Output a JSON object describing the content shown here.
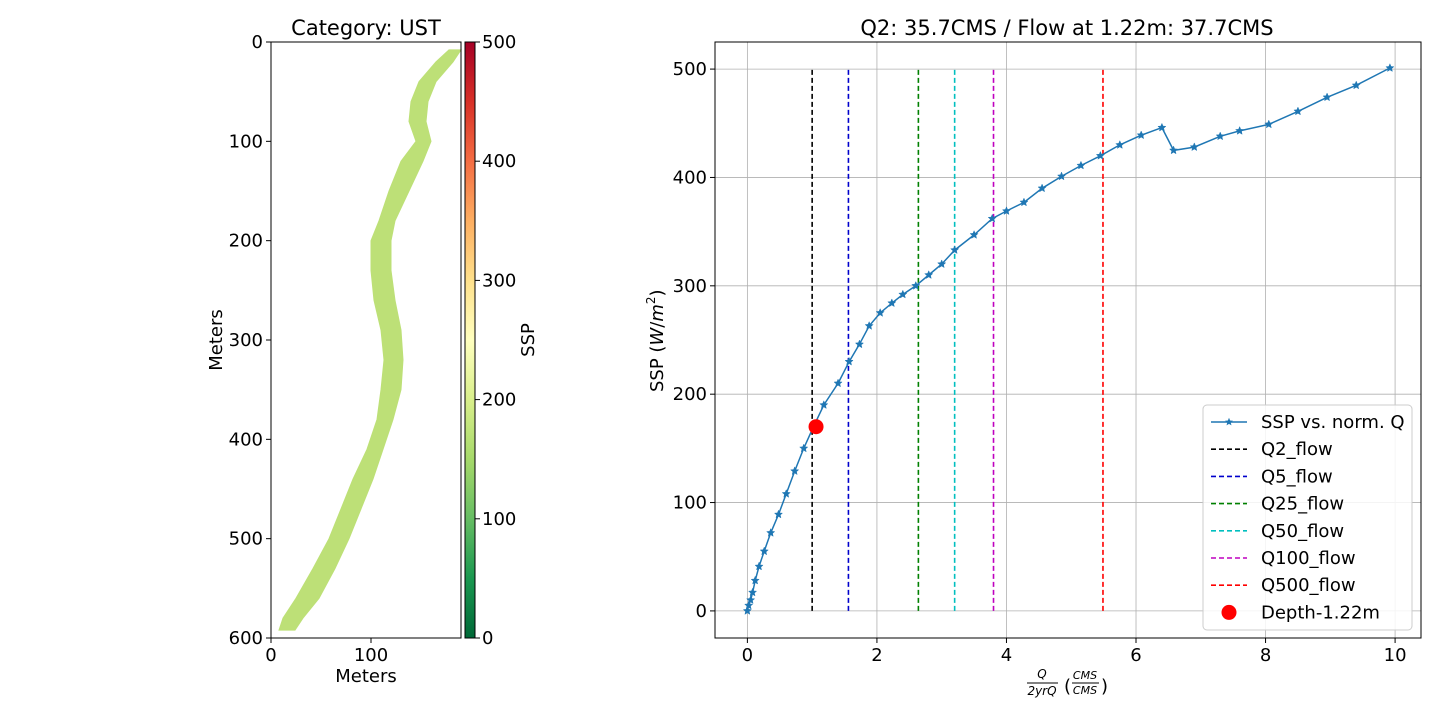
{
  "chart_data": [
    {
      "type": "heatmap",
      "title": "Category: UST",
      "xlabel": "Meters",
      "ylabel": "Meters",
      "xlim": [
        0,
        190
      ],
      "ylim": [
        600,
        0
      ],
      "x_ticks": [
        "0",
        "100"
      ],
      "x_tick_values": [
        0,
        100
      ],
      "y_ticks": [
        "0",
        "100",
        "200",
        "300",
        "400",
        "500",
        "600"
      ],
      "y_tick_values": [
        0,
        100,
        200,
        300,
        400,
        500,
        600
      ],
      "colorbar": {
        "label": "SSP",
        "range": [
          0,
          500
        ],
        "colormap": "RdYlGn_r",
        "ticks": [
          "0",
          "100",
          "200",
          "300",
          "400",
          "500"
        ],
        "tick_values": [
          0,
          100,
          200,
          300,
          400,
          500
        ]
      },
      "channel_value": 170,
      "channel_color": "#bde077",
      "channel_profile": {
        "y": [
          8,
          20,
          40,
          60,
          80,
          100,
          120,
          150,
          180,
          200,
          230,
          260,
          290,
          320,
          350,
          380,
          410,
          440,
          470,
          500,
          530,
          560,
          580,
          592
        ],
        "left": [
          178,
          165,
          148,
          140,
          138,
          145,
          130,
          118,
          108,
          100,
          100,
          103,
          110,
          113,
          110,
          106,
          96,
          82,
          70,
          58,
          42,
          25,
          12,
          8
        ],
        "right": [
          190,
          182,
          165,
          157,
          155,
          160,
          152,
          138,
          124,
          120,
          120,
          124,
          130,
          132,
          130,
          122,
          112,
          102,
          90,
          78,
          64,
          48,
          32,
          24
        ]
      }
    },
    {
      "type": "line",
      "title": "Q2: 35.7CMS / Flow at 1.22m: 37.7CMS",
      "xlabel": "Q / 2yrQ (CMS / CMS)",
      "ylabel": "SSP (W/m²)",
      "xlim": [
        -0.5,
        10.4
      ],
      "ylim": [
        -25,
        525
      ],
      "grid": true,
      "legend_position": "lower-right",
      "x_ticks": [
        "0",
        "2",
        "4",
        "6",
        "8",
        "10"
      ],
      "x_tick_values": [
        0,
        2,
        4,
        6,
        8,
        10
      ],
      "y_ticks": [
        "0",
        "100",
        "200",
        "300",
        "400",
        "500"
      ],
      "y_tick_values": [
        0,
        100,
        200,
        300,
        400,
        500
      ],
      "series": [
        {
          "name": "SSP vs. norm. Q",
          "color": "#1f77b4",
          "marker": "star",
          "x": [
            0,
            0.02,
            0.05,
            0.08,
            0.12,
            0.18,
            0.26,
            0.36,
            0.48,
            0.6,
            0.73,
            0.87,
            1.02,
            1.18,
            1.4,
            1.57,
            1.73,
            1.88,
            2.05,
            2.23,
            2.4,
            2.6,
            2.8,
            3.0,
            3.2,
            3.5,
            3.78,
            4.0,
            4.27,
            4.55,
            4.85,
            5.15,
            5.45,
            5.75,
            6.08,
            6.4,
            6.58,
            6.9,
            7.3,
            7.6,
            8.05,
            8.5,
            8.95,
            9.4,
            9.92
          ],
          "y": [
            0,
            5,
            10,
            17,
            28,
            41,
            55,
            72,
            89,
            108,
            129,
            150,
            170,
            190,
            210,
            230,
            246,
            263,
            275,
            284,
            292,
            300,
            310,
            320,
            333,
            347,
            362,
            369,
            377,
            390,
            401,
            411,
            420,
            430,
            439,
            446,
            425,
            428,
            438,
            443,
            449,
            461,
            474,
            485,
            501
          ]
        }
      ],
      "vlines": [
        {
          "name": "Q2_flow",
          "x": 1.0,
          "color": "#000000",
          "ymax": 500
        },
        {
          "name": "Q5_flow",
          "x": 1.56,
          "color": "#0000cc",
          "ymax": 500
        },
        {
          "name": "Q25_flow",
          "x": 2.64,
          "color": "#008000",
          "ymax": 500
        },
        {
          "name": "Q50_flow",
          "x": 3.2,
          "color": "#00bfbf",
          "ymax": 500
        },
        {
          "name": "Q100_flow",
          "x": 3.8,
          "color": "#bf00bf",
          "ymax": 500
        },
        {
          "name": "Q500_flow",
          "x": 5.49,
          "color": "#ff0000",
          "ymax": 500
        }
      ],
      "point": {
        "name": "Depth-1.22m",
        "x": 1.06,
        "y": 170,
        "color": "#ff0000"
      }
    }
  ]
}
